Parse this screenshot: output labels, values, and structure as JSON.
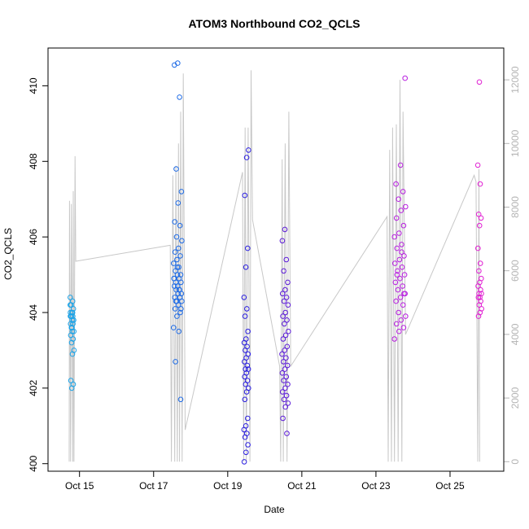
{
  "chart_data": {
    "type": "scatter",
    "title": "ATOM3 Northbound CO2_QCLS",
    "xlabel": "Date",
    "ylabel": "CO2_QCLS",
    "xlim": [
      14.15,
      26.45
    ],
    "ylim": [
      399.8,
      411.0
    ],
    "y_ticks": [
      400,
      402,
      404,
      406,
      408,
      410
    ],
    "x_ticks": [
      {
        "value": 15,
        "label": "Oct 15"
      },
      {
        "value": 17,
        "label": "Oct 17"
      },
      {
        "value": 19,
        "label": "Oct 19"
      },
      {
        "value": 21,
        "label": "Oct 21"
      },
      {
        "value": 23,
        "label": "Oct 23"
      },
      {
        "value": 25,
        "label": "Oct 25"
      }
    ],
    "secondary_axis": {
      "label": "",
      "ylim": [
        -300,
        13000
      ],
      "ticks": [
        0,
        2000,
        4000,
        6000,
        8000,
        10000,
        12000
      ],
      "line_color": "#c8c8c8"
    },
    "grid": false,
    "legend": "none",
    "colors": {
      "series_1": "#1aa3e8",
      "series_2": "#1e6be6",
      "series_3": "#2b1fe0",
      "series_4": "#5b1ad8",
      "series_5": "#b81ee0",
      "series_6": "#e01ed2",
      "altitude_line": "#c8c8c8",
      "axis": "#000000"
    },
    "series": [
      {
        "x_center": 14.8,
        "x_spread": 0.1,
        "color_key": "series_1",
        "values": [
          404.4,
          404.3,
          404.2,
          404.1,
          404.0,
          404.0,
          403.9,
          403.9,
          403.8,
          403.8,
          403.7,
          403.7,
          403.6,
          403.5,
          403.5,
          403.4,
          403.3,
          403.2,
          403.0,
          402.9,
          402.2,
          402.1,
          402.0,
          404.2,
          404.0,
          403.9,
          403.8,
          403.6,
          403.9,
          403.7
        ]
      },
      {
        "x_center": 17.65,
        "x_spread": 0.22,
        "color_key": "series_2",
        "values": [
          410.6,
          410.55,
          409.7,
          407.8,
          407.2,
          406.9,
          406.4,
          406.3,
          406.0,
          405.9,
          405.7,
          405.6,
          405.5,
          405.4,
          405.3,
          405.2,
          405.1,
          405.0,
          405.0,
          404.9,
          404.9,
          404.8,
          404.8,
          404.7,
          404.7,
          404.6,
          404.6,
          404.5,
          404.5,
          404.4,
          404.4,
          404.3,
          404.3,
          404.2,
          404.1,
          404.0,
          403.9,
          403.6,
          403.5,
          402.7,
          401.7,
          405.2,
          404.9,
          404.6,
          404.3,
          404.1
        ]
      },
      {
        "x_center": 19.5,
        "x_spread": 0.12,
        "color_key": "series_3",
        "values": [
          408.3,
          408.1,
          407.1,
          405.7,
          405.2,
          404.4,
          404.1,
          403.9,
          403.5,
          403.3,
          403.2,
          403.1,
          403.0,
          402.9,
          402.8,
          402.7,
          402.6,
          402.5,
          402.5,
          402.4,
          402.3,
          402.2,
          402.1,
          402.0,
          401.9,
          401.7,
          401.2,
          401.0,
          400.9,
          400.8,
          400.7,
          400.5,
          400.3,
          400.05
        ]
      },
      {
        "x_center": 20.55,
        "x_spread": 0.17,
        "color_key": "series_4",
        "values": [
          406.2,
          405.9,
          405.4,
          405.1,
          404.8,
          404.6,
          404.5,
          404.4,
          404.3,
          404.2,
          404.0,
          403.9,
          403.8,
          403.7,
          403.5,
          403.4,
          403.3,
          403.1,
          403.0,
          402.9,
          402.8,
          402.7,
          402.6,
          402.5,
          402.4,
          402.3,
          402.2,
          402.1,
          402.0,
          401.9,
          401.8,
          401.7,
          401.6,
          401.5,
          401.2,
          400.8
        ]
      },
      {
        "x_center": 23.65,
        "x_spread": 0.3,
        "color_key": "series_5",
        "values": [
          410.2,
          407.9,
          407.4,
          407.2,
          407.0,
          406.8,
          406.7,
          406.5,
          406.3,
          406.1,
          406.0,
          405.8,
          405.7,
          405.5,
          405.4,
          405.3,
          405.2,
          405.1,
          405.0,
          404.9,
          404.8,
          404.7,
          404.6,
          404.5,
          404.4,
          404.3,
          404.2,
          404.0,
          403.9,
          403.8,
          403.7,
          403.6,
          403.5,
          403.3,
          405.6,
          405.0,
          404.5
        ]
      },
      {
        "x_center": 25.8,
        "x_spread": 0.1,
        "color_key": "series_6",
        "values": [
          410.1,
          407.9,
          407.4,
          406.6,
          406.5,
          406.3,
          405.7,
          405.3,
          405.1,
          404.9,
          404.8,
          404.7,
          404.6,
          404.5,
          404.5,
          404.4,
          404.4,
          404.3,
          404.2,
          404.1,
          404.0,
          403.9
        ]
      }
    ],
    "altitude_line": {
      "points": [
        [
          14.72,
          0
        ],
        [
          14.73,
          8200
        ],
        [
          14.76,
          0
        ],
        [
          14.78,
          8100
        ],
        [
          14.82,
          0
        ],
        [
          14.83,
          8500
        ],
        [
          14.85,
          0
        ],
        [
          14.88,
          9600
        ],
        [
          14.9,
          6300
        ],
        [
          17.45,
          6800
        ],
        [
          17.48,
          0
        ],
        [
          17.52,
          9000
        ],
        [
          17.57,
          0
        ],
        [
          17.6,
          9300
        ],
        [
          17.64,
          0
        ],
        [
          17.67,
          10000
        ],
        [
          17.7,
          0
        ],
        [
          17.73,
          11000
        ],
        [
          17.77,
          0
        ],
        [
          17.8,
          12200
        ],
        [
          17.85,
          1000
        ],
        [
          19.4,
          9100
        ],
        [
          19.43,
          0
        ],
        [
          19.47,
          10500
        ],
        [
          19.5,
          0
        ],
        [
          19.55,
          10500
        ],
        [
          19.6,
          0
        ],
        [
          19.63,
          12300
        ],
        [
          19.67,
          7600
        ],
        [
          20.4,
          3000
        ],
        [
          20.43,
          0
        ],
        [
          20.47,
          9500
        ],
        [
          20.5,
          0
        ],
        [
          20.55,
          10000
        ],
        [
          20.6,
          0
        ],
        [
          20.65,
          11000
        ],
        [
          20.7,
          3000
        ],
        [
          23.3,
          7700
        ],
        [
          23.33,
          0
        ],
        [
          23.37,
          9800
        ],
        [
          23.42,
          0
        ],
        [
          23.45,
          10500
        ],
        [
          23.5,
          0
        ],
        [
          23.55,
          10600
        ],
        [
          23.6,
          0
        ],
        [
          23.65,
          12000
        ],
        [
          23.7,
          0
        ],
        [
          23.73,
          11000
        ],
        [
          23.8,
          4000
        ],
        [
          25.65,
          9000
        ],
        [
          25.7,
          8800
        ],
        [
          25.75,
          0
        ],
        [
          25.78,
          9200
        ],
        [
          25.8,
          0
        ]
      ]
    }
  }
}
